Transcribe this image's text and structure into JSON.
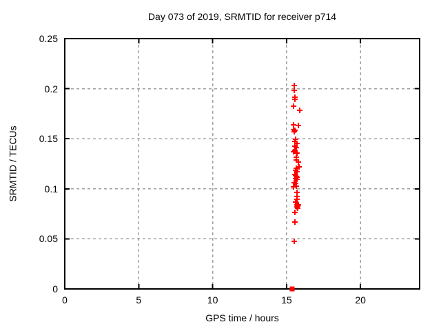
{
  "figure": {
    "background": "#ffffff"
  },
  "chart_data": {
    "type": "scatter",
    "title": "Day 073 of 2019, SRMTID for receiver p714",
    "xlabel": "GPS time / hours",
    "ylabel": "SRMTID / TECUs",
    "xlim": [
      0,
      24
    ],
    "ylim": [
      0,
      0.25
    ],
    "xticks": {
      "values": [
        0,
        5,
        10,
        15,
        20
      ],
      "labels": [
        "0",
        "5",
        "10",
        "15",
        "20"
      ]
    },
    "yticks": {
      "values": [
        0,
        0.05,
        0.1,
        0.15,
        0.2,
        0.25
      ],
      "labels": [
        "0",
        "0.05",
        "0.1",
        "0.15",
        "0.2",
        "0.25"
      ]
    },
    "grid": true,
    "legend": "none",
    "colors": {
      "marker": "#ff0000",
      "grid": "#a0a0a0",
      "axis": "#000000",
      "text": "#000000"
    },
    "series": [
      {
        "marker": "plus",
        "color": "#ff0000",
        "points": [
          [
            15.52,
            0.203
          ],
          [
            15.52,
            0.1985
          ],
          [
            15.56,
            0.1912
          ],
          [
            15.57,
            0.1895
          ],
          [
            15.49,
            0.1828
          ],
          [
            15.89,
            0.1785
          ],
          [
            15.47,
            0.1642
          ],
          [
            15.81,
            0.163
          ],
          [
            15.48,
            0.1593
          ],
          [
            15.55,
            0.1582
          ],
          [
            15.51,
            0.157
          ],
          [
            15.61,
            0.1492
          ],
          [
            15.56,
            0.1475
          ],
          [
            15.7,
            0.1456
          ],
          [
            15.56,
            0.1424
          ],
          [
            15.65,
            0.141
          ],
          [
            15.56,
            0.1383
          ],
          [
            15.47,
            0.1372
          ],
          [
            15.7,
            0.1354
          ],
          [
            15.65,
            0.1313
          ],
          [
            15.65,
            0.1287
          ],
          [
            15.79,
            0.1267
          ],
          [
            15.84,
            0.122
          ],
          [
            15.66,
            0.1206
          ],
          [
            15.61,
            0.1183
          ],
          [
            15.7,
            0.1174
          ],
          [
            15.56,
            0.1142
          ],
          [
            15.61,
            0.1136
          ],
          [
            15.66,
            0.1126
          ],
          [
            15.7,
            0.1118
          ],
          [
            15.61,
            0.1102
          ],
          [
            15.7,
            0.1097
          ],
          [
            15.52,
            0.1058
          ],
          [
            15.61,
            0.1054
          ],
          [
            15.47,
            0.1021
          ],
          [
            15.66,
            0.1026
          ],
          [
            15.7,
            0.0966
          ],
          [
            15.7,
            0.0926
          ],
          [
            15.7,
            0.0898
          ],
          [
            15.61,
            0.0871
          ],
          [
            15.7,
            0.0841
          ],
          [
            15.79,
            0.0838
          ],
          [
            15.77,
            0.0827
          ],
          [
            15.71,
            0.0818
          ],
          [
            15.75,
            0.0803
          ],
          [
            15.56,
            0.0762
          ],
          [
            15.56,
            0.0671
          ],
          [
            15.52,
            0.0476
          ]
        ]
      },
      {
        "marker": "filled-square",
        "color": "#ff0000",
        "points": [
          [
            15.38,
            0
          ]
        ]
      }
    ]
  }
}
